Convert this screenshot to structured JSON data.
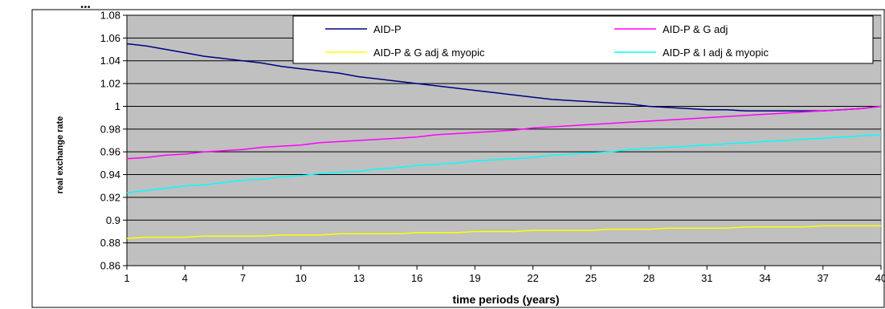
{
  "top_fragment": "...",
  "chart_data": {
    "type": "line",
    "title": "",
    "xlabel": "time periods (years)",
    "ylabel": "real exchange rate",
    "xlim": [
      1,
      40
    ],
    "ylim": [
      0.86,
      1.08
    ],
    "y_ticks": [
      "1.08",
      "1.06",
      "1.04",
      "1.02",
      "1",
      "0.98",
      "0.96",
      "0.94",
      "0.92",
      "0.9",
      "0.88",
      "0.86"
    ],
    "y_tick_values": [
      1.08,
      1.06,
      1.04,
      1.02,
      1.0,
      0.98,
      0.96,
      0.94,
      0.92,
      0.9,
      0.88,
      0.86
    ],
    "x_ticks": [
      "1",
      "4",
      "7",
      "10",
      "13",
      "16",
      "19",
      "22",
      "25",
      "28",
      "31",
      "34",
      "37",
      "40"
    ],
    "grid": true,
    "plot_background": "#c0c0c0",
    "legend_position": "top-right",
    "x": [
      1,
      2,
      3,
      4,
      5,
      6,
      7,
      8,
      9,
      10,
      11,
      12,
      13,
      14,
      15,
      16,
      17,
      18,
      19,
      20,
      21,
      22,
      23,
      24,
      25,
      26,
      27,
      28,
      29,
      30,
      31,
      32,
      33,
      34,
      35,
      36,
      37,
      38,
      39,
      40
    ],
    "series": [
      {
        "name": "AID-P",
        "color": "#000080",
        "values": [
          1.055,
          1.053,
          1.05,
          1.047,
          1.044,
          1.042,
          1.04,
          1.038,
          1.035,
          1.033,
          1.031,
          1.029,
          1.026,
          1.024,
          1.022,
          1.02,
          1.018,
          1.016,
          1.014,
          1.012,
          1.01,
          1.008,
          1.006,
          1.005,
          1.004,
          1.003,
          1.002,
          1.0,
          0.999,
          0.998,
          0.997,
          0.997,
          0.996,
          0.996,
          0.996,
          0.996,
          0.996,
          0.997,
          0.998,
          1.0
        ]
      },
      {
        "name": "AID-P & G adj",
        "color": "#ff00ff",
        "values": [
          0.954,
          0.955,
          0.957,
          0.958,
          0.96,
          0.961,
          0.962,
          0.964,
          0.965,
          0.966,
          0.968,
          0.969,
          0.97,
          0.971,
          0.972,
          0.973,
          0.975,
          0.976,
          0.977,
          0.978,
          0.979,
          0.981,
          0.982,
          0.983,
          0.984,
          0.985,
          0.986,
          0.987,
          0.988,
          0.989,
          0.99,
          0.991,
          0.992,
          0.993,
          0.994,
          0.995,
          0.996,
          0.997,
          0.998,
          1.0
        ]
      },
      {
        "name": "AID-P & G adj & myopic",
        "color": "#ffff00",
        "values": [
          0.884,
          0.885,
          0.885,
          0.885,
          0.886,
          0.886,
          0.886,
          0.886,
          0.887,
          0.887,
          0.887,
          0.888,
          0.888,
          0.888,
          0.888,
          0.889,
          0.889,
          0.889,
          0.89,
          0.89,
          0.89,
          0.891,
          0.891,
          0.891,
          0.891,
          0.892,
          0.892,
          0.892,
          0.893,
          0.893,
          0.893,
          0.893,
          0.894,
          0.894,
          0.894,
          0.894,
          0.895,
          0.895,
          0.895,
          0.895
        ]
      },
      {
        "name": "AID-P & I adj & myopic",
        "color": "#00ffff",
        "values": [
          0.924,
          0.926,
          0.928,
          0.93,
          0.931,
          0.933,
          0.935,
          0.936,
          0.938,
          0.939,
          0.941,
          0.942,
          0.943,
          0.945,
          0.946,
          0.948,
          0.949,
          0.95,
          0.952,
          0.953,
          0.954,
          0.955,
          0.957,
          0.958,
          0.959,
          0.96,
          0.962,
          0.963,
          0.964,
          0.965,
          0.966,
          0.967,
          0.968,
          0.969,
          0.97,
          0.971,
          0.972,
          0.973,
          0.974,
          0.975
        ]
      }
    ]
  }
}
